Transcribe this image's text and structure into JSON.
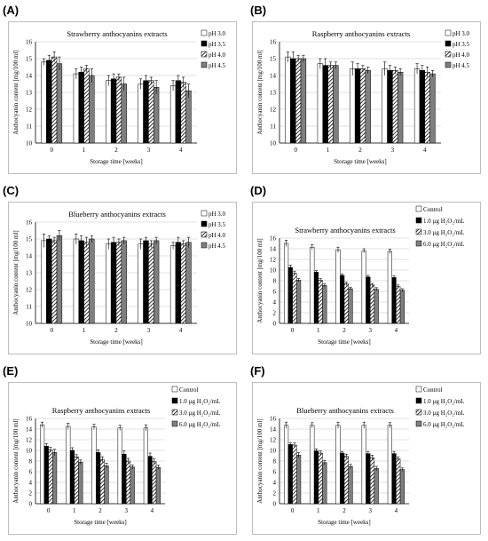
{
  "panels": [
    {
      "label": "(A)"
    },
    {
      "label": "(B)"
    },
    {
      "label": "(C)"
    },
    {
      "label": "(D)"
    },
    {
      "label": "(E)"
    },
    {
      "label": "(F)"
    }
  ],
  "chart_data": [
    {
      "type": "bar",
      "title": "Strawberry anthocyanins extracts",
      "xlabel": "Storage time [weeks]",
      "ylabel": "Anthocyanin content [mg/100 ml]",
      "categories": [
        "0",
        "1",
        "2",
        "3",
        "4"
      ],
      "ylim": [
        10,
        16
      ],
      "yticks": [
        10,
        11,
        12,
        13,
        14,
        15,
        16
      ],
      "grid": true,
      "legend_position": "top-right",
      "series": [
        {
          "name": "pH 3.0",
          "values": [
            14.8,
            14.1,
            13.7,
            13.5,
            13.4
          ],
          "errors": [
            0.2,
            0.3,
            0.3,
            0.3,
            0.3
          ]
        },
        {
          "name": "pH 3.5",
          "values": [
            14.9,
            14.2,
            13.8,
            13.7,
            13.7
          ],
          "errors": [
            0.3,
            0.3,
            0.3,
            0.3,
            0.3
          ]
        },
        {
          "name": "pH 4.0",
          "values": [
            15.1,
            14.4,
            13.9,
            13.7,
            13.6
          ],
          "errors": [
            0.3,
            0.2,
            0.2,
            0.2,
            0.3
          ]
        },
        {
          "name": "pH 4.5",
          "values": [
            14.7,
            14.0,
            13.5,
            13.3,
            13.1
          ],
          "errors": [
            0.4,
            0.4,
            0.4,
            0.4,
            0.4
          ]
        }
      ]
    },
    {
      "type": "bar",
      "title": "Raspberry anthocyanins extracts",
      "xlabel": "Storage time [weeks]",
      "ylabel": "Anthocyanin content [mg/100 ml]",
      "categories": [
        "0",
        "1",
        "2",
        "3",
        "4"
      ],
      "ylim": [
        10,
        16
      ],
      "yticks": [
        10,
        11,
        12,
        13,
        14,
        15,
        16
      ],
      "grid": true,
      "legend_position": "top-right",
      "series": [
        {
          "name": "pH 3.0",
          "values": [
            15.1,
            14.7,
            14.4,
            14.4,
            14.4
          ],
          "errors": [
            0.3,
            0.3,
            0.4,
            0.4,
            0.3
          ]
        },
        {
          "name": "pH 3.5",
          "values": [
            15.0,
            14.6,
            14.4,
            14.3,
            14.3
          ],
          "errors": [
            0.4,
            0.4,
            0.3,
            0.3,
            0.3
          ]
        },
        {
          "name": "pH 4.0",
          "values": [
            15.0,
            14.6,
            14.4,
            14.3,
            14.2
          ],
          "errors": [
            0.2,
            0.2,
            0.2,
            0.2,
            0.3
          ]
        },
        {
          "name": "pH 4.5",
          "values": [
            15.0,
            14.6,
            14.3,
            14.2,
            14.1
          ],
          "errors": [
            0.2,
            0.2,
            0.2,
            0.2,
            0.2
          ]
        }
      ]
    },
    {
      "type": "bar",
      "title": "Blueberry anthocyanins extracts",
      "xlabel": "Storage time [weeks]",
      "ylabel": "Anthocyanin content [mg/100 ml]",
      "categories": [
        "0",
        "1",
        "2",
        "3",
        "4"
      ],
      "ylim": [
        10,
        16
      ],
      "yticks": [
        10,
        11,
        12,
        13,
        14,
        15,
        16
      ],
      "grid": true,
      "legend_position": "top-right",
      "series": [
        {
          "name": "pH 3.0",
          "values": [
            14.9,
            15.0,
            14.7,
            14.7,
            14.6
          ],
          "errors": [
            0.4,
            0.3,
            0.3,
            0.3,
            0.2
          ]
        },
        {
          "name": "pH 3.5",
          "values": [
            15.0,
            14.9,
            14.8,
            14.9,
            14.8
          ],
          "errors": [
            0.2,
            0.3,
            0.3,
            0.2,
            0.3
          ]
        },
        {
          "name": "pH 4.0",
          "values": [
            14.9,
            14.8,
            14.8,
            14.7,
            14.7
          ],
          "errors": [
            0.2,
            0.3,
            0.2,
            0.2,
            0.2
          ]
        },
        {
          "name": "pH 4.5",
          "values": [
            15.2,
            15.0,
            14.9,
            14.9,
            14.8
          ],
          "errors": [
            0.3,
            0.2,
            0.2,
            0.2,
            0.3
          ]
        }
      ]
    },
    {
      "type": "bar",
      "title": "Strawberry anthocyanins extracts",
      "xlabel": "Storage time [weeks]",
      "ylabel": "Anthocyanin content [mg/100 ml]",
      "categories": [
        "0",
        "1",
        "2",
        "3",
        "4"
      ],
      "ylim": [
        0,
        16
      ],
      "yticks": [
        0,
        2,
        4,
        6,
        8,
        10,
        12,
        14,
        16
      ],
      "grid": true,
      "legend_position": "top-right",
      "series": [
        {
          "name": "Control",
          "values": [
            15.0,
            14.3,
            13.8,
            13.6,
            13.5
          ],
          "errors": [
            0.6,
            0.5,
            0.5,
            0.4,
            0.4
          ]
        },
        {
          "name": "1.0 µg H₂O₂/mL",
          "values": [
            10.5,
            9.6,
            9.0,
            8.7,
            8.6
          ],
          "errors": [
            0.4,
            0.3,
            0.3,
            0.3,
            0.3
          ]
        },
        {
          "name": "3.0 µg H₂O₂/mL",
          "values": [
            9.4,
            8.1,
            7.4,
            7.2,
            6.9
          ],
          "errors": [
            0.4,
            0.3,
            0.3,
            0.3,
            0.3
          ]
        },
        {
          "name": "6.0 µg H₂O₂/mL",
          "values": [
            8.1,
            7.1,
            6.5,
            6.4,
            6.2
          ],
          "errors": [
            0.3,
            0.3,
            0.3,
            0.3,
            0.3
          ]
        }
      ]
    },
    {
      "type": "bar",
      "title": "Raspberry anthocyanins extracts",
      "xlabel": "Storage time [weeks]",
      "ylabel": "Anthocyanin content [mg/100 ml]",
      "categories": [
        "0",
        "1",
        "2",
        "3",
        "4"
      ],
      "ylim": [
        0,
        16
      ],
      "yticks": [
        0,
        2,
        4,
        6,
        8,
        10,
        12,
        14,
        16
      ],
      "grid": true,
      "legend_position": "top-right",
      "series": [
        {
          "name": "Control",
          "values": [
            14.8,
            14.5,
            14.4,
            14.2,
            14.2
          ],
          "errors": [
            0.5,
            0.6,
            0.5,
            0.5,
            0.6
          ]
        },
        {
          "name": "1.0 µg H₂O₂/mL",
          "values": [
            10.8,
            10.0,
            9.6,
            9.3,
            8.9
          ],
          "errors": [
            0.5,
            0.5,
            0.5,
            0.6,
            0.6
          ]
        },
        {
          "name": "3.0 µg H₂O₂/mL",
          "values": [
            10.1,
            8.8,
            8.3,
            8.0,
            7.9
          ],
          "errors": [
            0.5,
            0.4,
            0.5,
            0.5,
            0.5
          ]
        },
        {
          "name": "6.0 µg H₂O₂/mL",
          "values": [
            9.6,
            7.8,
            7.1,
            6.9,
            6.8
          ],
          "errors": [
            0.6,
            0.4,
            0.5,
            0.4,
            0.4
          ]
        }
      ]
    },
    {
      "type": "bar",
      "title": "Blueberry anthocyanins extracts",
      "xlabel": "Storage time [weeks]",
      "ylabel": "Anthocyanin content [mg/100 ml]",
      "categories": [
        "0",
        "1",
        "2",
        "3",
        "4"
      ],
      "ylim": [
        0,
        16
      ],
      "yticks": [
        0,
        2,
        4,
        6,
        8,
        10,
        12,
        14,
        16
      ],
      "grid": true,
      "legend_position": "top-right",
      "series": [
        {
          "name": "Control",
          "values": [
            14.7,
            14.7,
            14.7,
            14.7,
            14.7
          ],
          "errors": [
            0.6,
            0.5,
            0.6,
            0.6,
            0.5
          ]
        },
        {
          "name": "1.0 µg H₂O₂/mL",
          "values": [
            11.1,
            9.9,
            9.5,
            9.4,
            9.4
          ],
          "errors": [
            0.3,
            0.4,
            0.3,
            0.4,
            0.4
          ]
        },
        {
          "name": "3.0 µg H₂O₂/mL",
          "values": [
            11.0,
            9.5,
            8.9,
            8.6,
            8.4
          ],
          "errors": [
            0.4,
            0.4,
            0.4,
            0.5,
            0.4
          ]
        },
        {
          "name": "6.0 µg H₂O₂/mL",
          "values": [
            9.1,
            7.7,
            7.0,
            6.6,
            6.4
          ],
          "errors": [
            0.5,
            0.4,
            0.4,
            0.4,
            0.3
          ]
        }
      ]
    }
  ]
}
